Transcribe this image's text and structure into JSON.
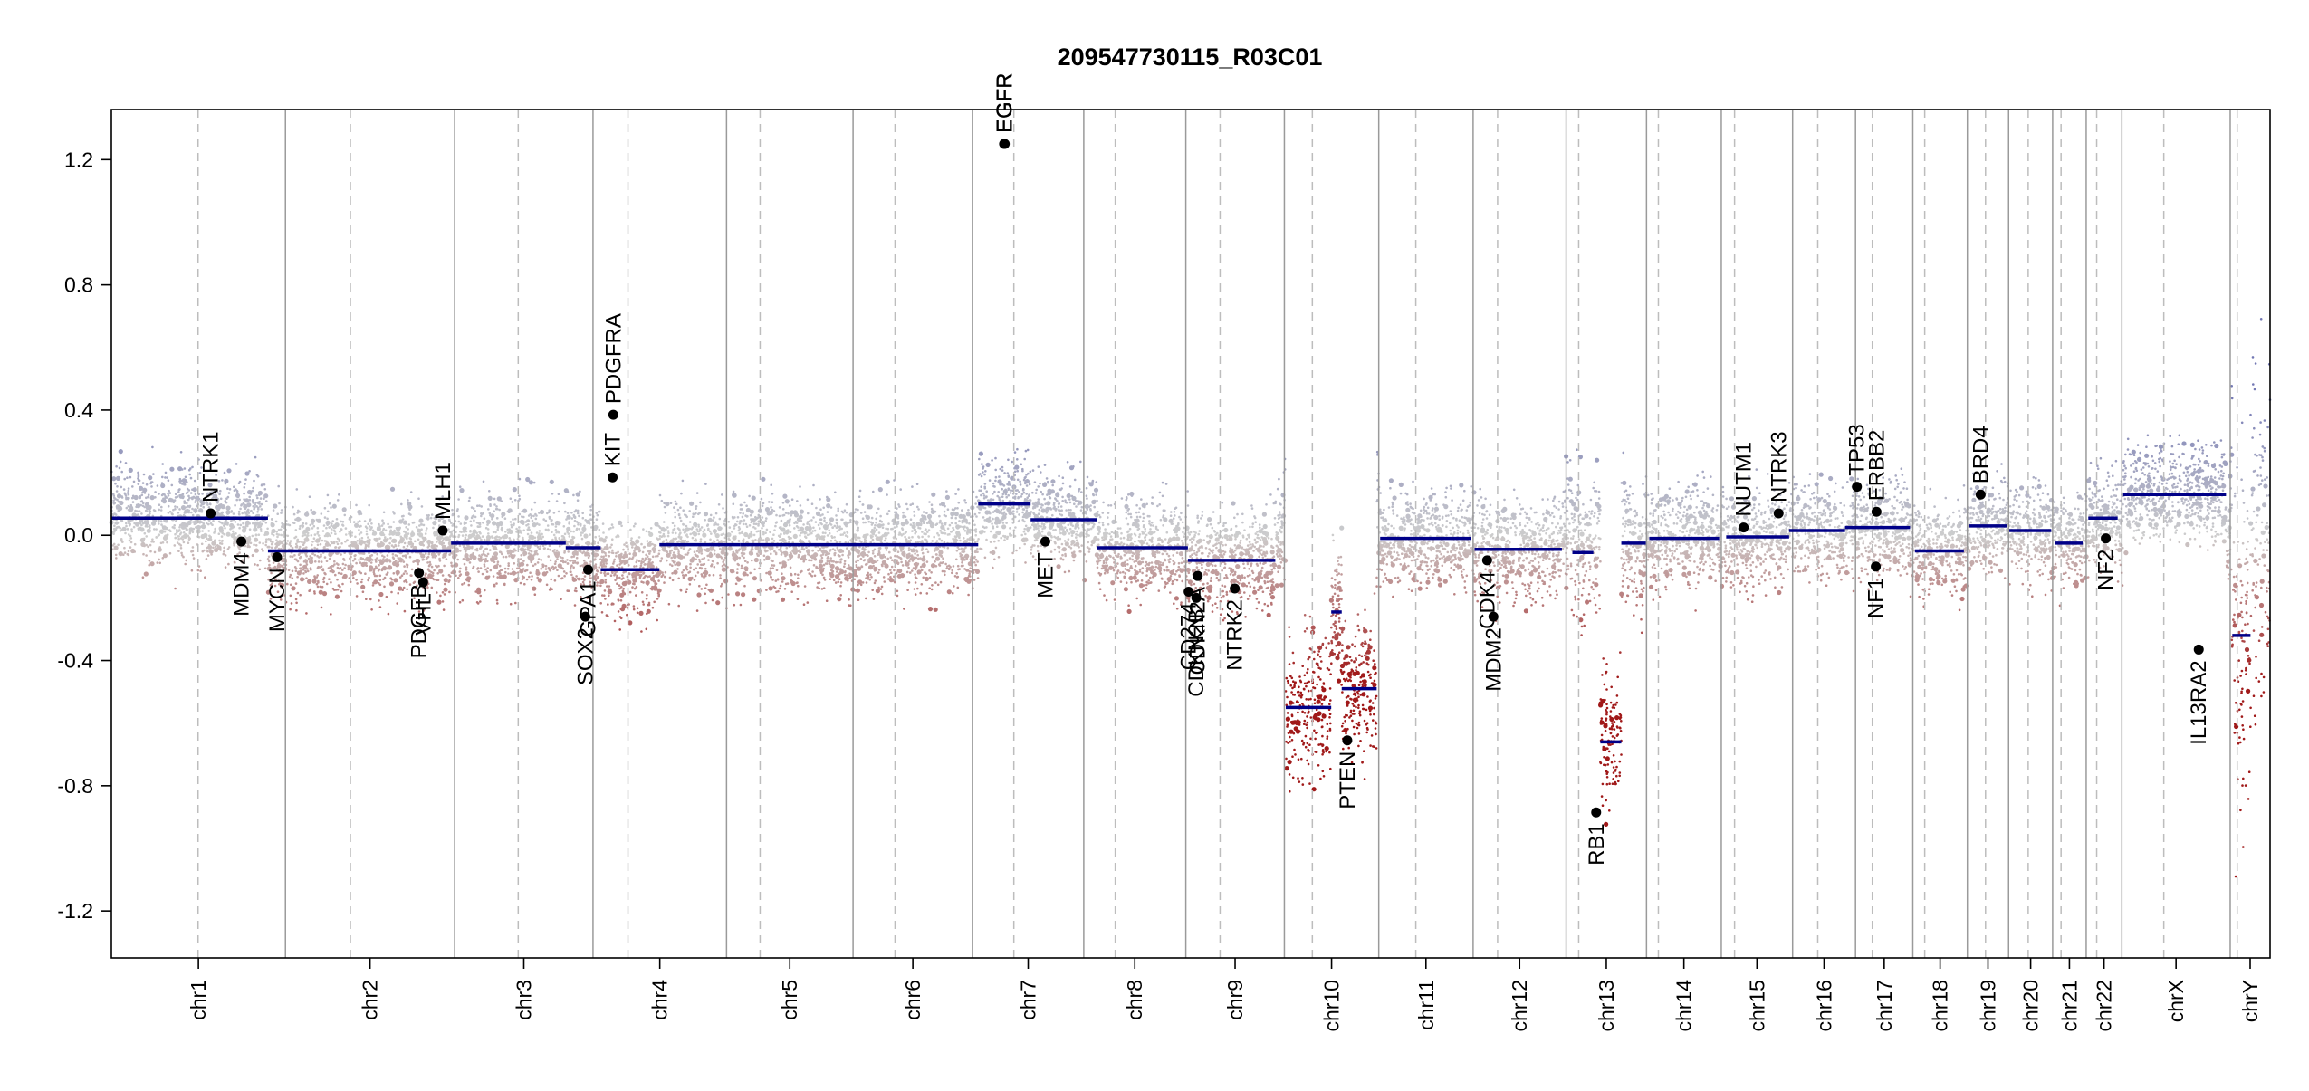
{
  "chart_data": {
    "type": "scatter",
    "title": "209547730115_R03C01",
    "ylim": [
      -1.35,
      1.36
    ],
    "y_ticks": [
      -1.2,
      -0.8,
      -0.4,
      0.0,
      0.4,
      0.8,
      1.2
    ],
    "y_tick_labels": [
      "-1.2",
      "-0.8",
      "-0.4",
      "0.0",
      "0.4",
      "0.8",
      "1.2"
    ],
    "xlim": [
      0,
      2927
    ],
    "grid": false,
    "chromosomes": [
      {
        "name": "chr1",
        "start": 0,
        "end": 249,
        "centromere": 124
      },
      {
        "name": "chr2",
        "start": 249,
        "end": 491,
        "centromere": 93
      },
      {
        "name": "chr3",
        "start": 491,
        "end": 689,
        "centromere": 91
      },
      {
        "name": "chr4",
        "start": 689,
        "end": 880,
        "centromere": 50
      },
      {
        "name": "chr5",
        "start": 880,
        "end": 1061,
        "centromere": 48
      },
      {
        "name": "chr6",
        "start": 1061,
        "end": 1232,
        "centromere": 60
      },
      {
        "name": "chr7",
        "start": 1232,
        "end": 1391,
        "centromere": 59
      },
      {
        "name": "chr8",
        "start": 1391,
        "end": 1537,
        "centromere": 45
      },
      {
        "name": "chr9",
        "start": 1537,
        "end": 1678,
        "centromere": 49
      },
      {
        "name": "chr10",
        "start": 1678,
        "end": 1813,
        "centromere": 40
      },
      {
        "name": "chr11",
        "start": 1813,
        "end": 1948,
        "centromere": 53
      },
      {
        "name": "chr12",
        "start": 1948,
        "end": 2081,
        "centromere": 35
      },
      {
        "name": "chr13",
        "start": 2081,
        "end": 2196,
        "centromere": 18
      },
      {
        "name": "chr14",
        "start": 2196,
        "end": 2303,
        "centromere": 17
      },
      {
        "name": "chr15",
        "start": 2303,
        "end": 2405,
        "centromere": 19
      },
      {
        "name": "chr16",
        "start": 2405,
        "end": 2495,
        "centromere": 36
      },
      {
        "name": "chr17",
        "start": 2495,
        "end": 2577,
        "centromere": 24
      },
      {
        "name": "chr18",
        "start": 2577,
        "end": 2655,
        "centromere": 17
      },
      {
        "name": "chr19",
        "start": 2655,
        "end": 2714,
        "centromere": 26
      },
      {
        "name": "chr20",
        "start": 2714,
        "end": 2777,
        "centromere": 28
      },
      {
        "name": "chr21",
        "start": 2777,
        "end": 2825,
        "centromere": 12
      },
      {
        "name": "chr22",
        "start": 2825,
        "end": 2876,
        "centromere": 15
      },
      {
        "name": "chrX",
        "start": 2876,
        "end": 3031,
        "centromere": 60
      },
      {
        "name": "chrY",
        "start": 3031,
        "end": 3088,
        "centromere": 10
      }
    ],
    "segments": [
      {
        "x0": 0,
        "x1": 224,
        "y": 0.055
      },
      {
        "x0": 224,
        "x1": 486,
        "y": -0.05
      },
      {
        "x0": 486,
        "x1": 650,
        "y": -0.025
      },
      {
        "x0": 650,
        "x1": 700,
        "y": -0.04
      },
      {
        "x0": 700,
        "x1": 784,
        "y": -0.11
      },
      {
        "x0": 784,
        "x1": 900,
        "y": -0.03
      },
      {
        "x0": 900,
        "x1": 1240,
        "y": -0.03
      },
      {
        "x0": 1240,
        "x1": 1315,
        "y": 0.1
      },
      {
        "x0": 1315,
        "x1": 1410,
        "y": 0.05
      },
      {
        "x0": 1410,
        "x1": 1540,
        "y": -0.04
      },
      {
        "x0": 1540,
        "x1": 1665,
        "y": -0.08
      },
      {
        "x0": 1680,
        "x1": 1745,
        "y": -0.55
      },
      {
        "x0": 1745,
        "x1": 1760,
        "y": -0.245
      },
      {
        "x0": 1760,
        "x1": 1810,
        "y": -0.49
      },
      {
        "x0": 1815,
        "x1": 1945,
        "y": -0.01
      },
      {
        "x0": 1950,
        "x1": 2075,
        "y": -0.045
      },
      {
        "x0": 2090,
        "x1": 2120,
        "y": -0.055
      },
      {
        "x0": 2130,
        "x1": 2160,
        "y": -0.66
      },
      {
        "x0": 2160,
        "x1": 2195,
        "y": -0.025
      },
      {
        "x0": 2200,
        "x1": 2300,
        "y": -0.01
      },
      {
        "x0": 2310,
        "x1": 2400,
        "y": -0.005
      },
      {
        "x0": 2400,
        "x1": 2480,
        "y": 0.015
      },
      {
        "x0": 2480,
        "x1": 2573,
        "y": 0.025
      },
      {
        "x0": 2580,
        "x1": 2650,
        "y": -0.05
      },
      {
        "x0": 2658,
        "x1": 2712,
        "y": 0.03
      },
      {
        "x0": 2715,
        "x1": 2775,
        "y": 0.015
      },
      {
        "x0": 2780,
        "x1": 2820,
        "y": -0.025
      },
      {
        "x0": 2828,
        "x1": 2870,
        "y": 0.055
      },
      {
        "x0": 2878,
        "x1": 3025,
        "y": 0.13
      },
      {
        "x0": 3034,
        "x1": 3060,
        "y": -0.32
      }
    ],
    "genes": [
      {
        "name": "NTRK1",
        "x": 142,
        "y": 0.07
      },
      {
        "name": "MDM4",
        "x": 186,
        "y": -0.02
      },
      {
        "name": "MYCN",
        "x": 237,
        "y": -0.07
      },
      {
        "name": "PDGFB",
        "x": 440,
        "y": -0.12
      },
      {
        "name": "VHL",
        "x": 446,
        "y": -0.15
      },
      {
        "name": "MLH1",
        "x": 474,
        "y": 0.015
      },
      {
        "name": "SOX2",
        "x": 678,
        "y": -0.26
      },
      {
        "name": "GPA1",
        "x": 682,
        "y": -0.11
      },
      {
        "name": "KIT",
        "x": 717,
        "y": 0.185
      },
      {
        "name": "PDGFRA",
        "x": 718,
        "y": 0.385
      },
      {
        "name": "EGFR",
        "x": 1277,
        "y": 1.25
      },
      {
        "name": "EGFR",
        "x": 1278,
        "y": 1.25
      },
      {
        "name": "MET",
        "x": 1336,
        "y": -0.02
      },
      {
        "name": "CD274",
        "x": 1541,
        "y": -0.18
      },
      {
        "name": "CDKN2A",
        "x": 1554,
        "y": -0.13
      },
      {
        "name": "CDKN2B",
        "x": 1552,
        "y": -0.2
      },
      {
        "name": "NTRK2",
        "x": 1607,
        "y": -0.17
      },
      {
        "name": "PTEN",
        "x": 1768,
        "y": -0.655
      },
      {
        "name": "CDK4",
        "x": 1968,
        "y": -0.08
      },
      {
        "name": "MDM2",
        "x": 1977,
        "y": -0.26
      },
      {
        "name": "RB1",
        "x": 2124,
        "y": -0.885
      },
      {
        "name": "NUTM1",
        "x": 2335,
        "y": 0.025
      },
      {
        "name": "NTRK3",
        "x": 2385,
        "y": 0.07
      },
      {
        "name": "TP53",
        "x": 2497,
        "y": 0.155
      },
      {
        "name": "ERBB2",
        "x": 2525,
        "y": 0.075
      },
      {
        "name": "NF1",
        "x": 2524,
        "y": -0.1
      },
      {
        "name": "BRD4",
        "x": 2674,
        "y": 0.13
      },
      {
        "name": "NF2",
        "x": 2853,
        "y": -0.01
      },
      {
        "name": "IL13RA2",
        "x": 2986,
        "y": -0.365
      }
    ]
  }
}
